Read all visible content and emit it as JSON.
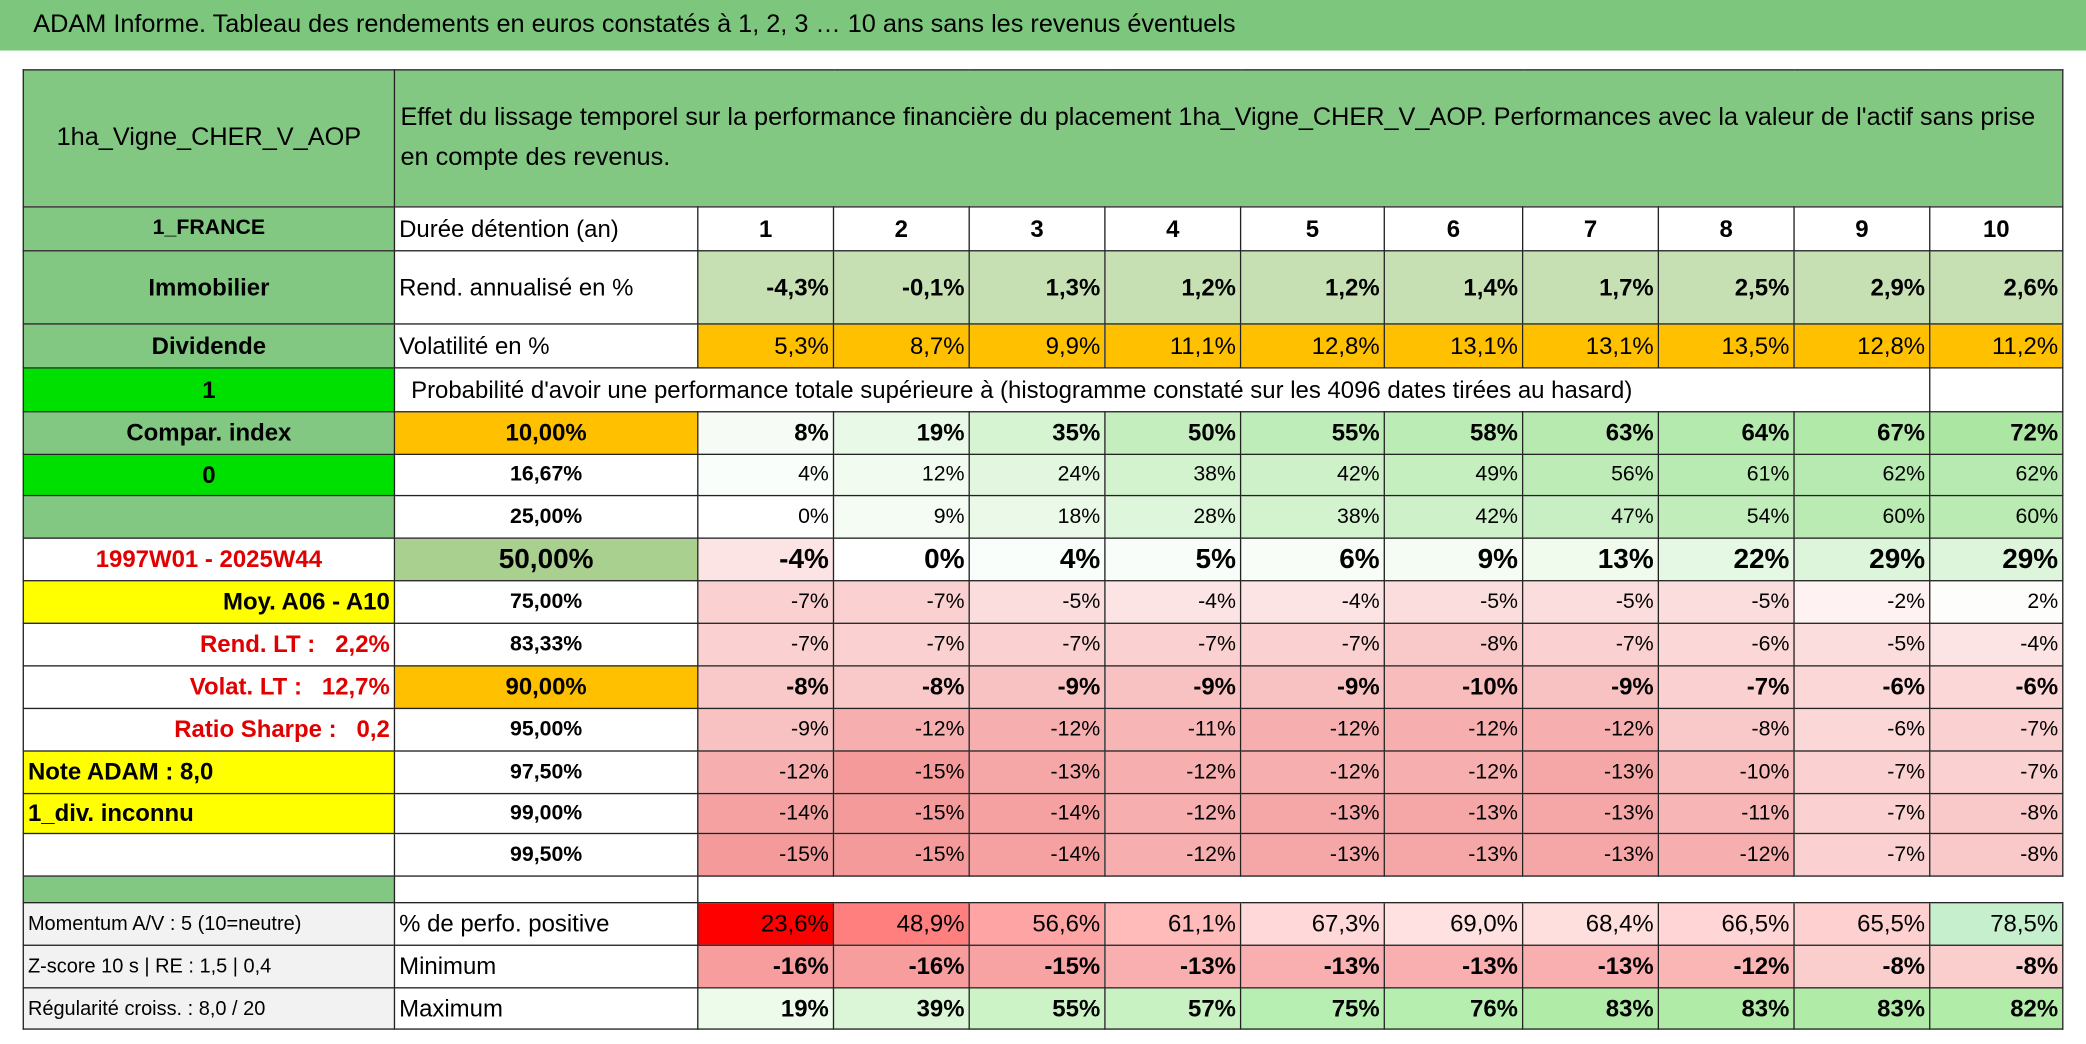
{
  "title": "ADAM Informe. Tableau des rendements en euros constatés à 1, 2, 3 … 10 ans sans les revenus éventuels",
  "table": {
    "corner": "1ha_Vigne_CHER_V_AOP",
    "description": "Effet du lissage temporel sur la performance financière du placement 1ha_Vigne_CHER_V_AOP. Performances avec la valeur de l'actif sans prise en compte des revenus.",
    "rows": [
      {
        "label": "1_FRANCE",
        "key": "Durée détention (an)",
        "cells": [
          "1",
          "2",
          "3",
          "4",
          "5",
          "6",
          "7",
          "8",
          "9",
          "10"
        ]
      },
      {
        "label": "Immobilier",
        "key": "Rend. annualisé en %",
        "cells": [
          "-4,3%",
          "-0,1%",
          "1,3%",
          "1,2%",
          "1,2%",
          "1,4%",
          "1,7%",
          "2,5%",
          "2,9%",
          "2,6%"
        ]
      },
      {
        "label": "Dividende",
        "key": "Volatilité en %",
        "cells": [
          "5,3%",
          "8,7%",
          "9,9%",
          "11,1%",
          "12,8%",
          "13,1%",
          "13,1%",
          "13,5%",
          "12,8%",
          "11,2%"
        ]
      },
      {
        "label": "1",
        "key": "Probabilité d'avoir une performance totale supérieure à (histogramme constaté sur les 4096 dates tirées au hasard)"
      },
      {
        "label": "Compar. index",
        "key": "10,00%",
        "cells": [
          "8%",
          "19%",
          "35%",
          "50%",
          "55%",
          "58%",
          "63%",
          "64%",
          "67%",
          "72%"
        ]
      },
      {
        "label": "0",
        "key": "16,67%",
        "cells": [
          "4%",
          "12%",
          "24%",
          "38%",
          "42%",
          "49%",
          "56%",
          "61%",
          "62%",
          "62%"
        ]
      },
      {
        "key": "25,00%",
        "cells": [
          "0%",
          "9%",
          "18%",
          "28%",
          "38%",
          "42%",
          "47%",
          "54%",
          "60%",
          "60%"
        ]
      },
      {
        "label": "1997W01 - 2025W44",
        "key": "50,00%",
        "cells": [
          "-4%",
          "0%",
          "4%",
          "5%",
          "6%",
          "9%",
          "13%",
          "22%",
          "29%",
          "29%"
        ]
      },
      {
        "label": "Moy. A06 - A10",
        "key": "75,00%",
        "cells": [
          "-7%",
          "-7%",
          "-5%",
          "-4%",
          "-4%",
          "-5%",
          "-5%",
          "-5%",
          "-2%",
          "2%"
        ]
      },
      {
        "label": "Rend. LT :   2,2%",
        "key": "83,33%",
        "cells": [
          "-7%",
          "-7%",
          "-7%",
          "-7%",
          "-7%",
          "-8%",
          "-7%",
          "-6%",
          "-5%",
          "-4%"
        ]
      },
      {
        "label": "Volat. LT :   12,7%",
        "key": "90,00%",
        "cells": [
          "-8%",
          "-8%",
          "-9%",
          "-9%",
          "-9%",
          "-10%",
          "-9%",
          "-7%",
          "-6%",
          "-6%"
        ]
      },
      {
        "label": "Ratio Sharpe :   0,2",
        "key": "95,00%",
        "cells": [
          "-9%",
          "-12%",
          "-12%",
          "-11%",
          "-12%",
          "-12%",
          "-12%",
          "-8%",
          "-6%",
          "-7%"
        ]
      },
      {
        "label": "Note ADAM : 8,0",
        "key": "97,50%",
        "cells": [
          "-12%",
          "-15%",
          "-13%",
          "-12%",
          "-12%",
          "-12%",
          "-13%",
          "-10%",
          "-7%",
          "-7%"
        ]
      },
      {
        "label": "1_div. inconnu",
        "key": "99,00%",
        "cells": [
          "-14%",
          "-15%",
          "-14%",
          "-12%",
          "-13%",
          "-13%",
          "-13%",
          "-11%",
          "-7%",
          "-8%"
        ]
      },
      {
        "key": "99,50%",
        "cells": [
          "-15%",
          "-15%",
          "-14%",
          "-12%",
          "-13%",
          "-13%",
          "-13%",
          "-12%",
          "-7%",
          "-8%"
        ]
      },
      {},
      {
        "label": "Momentum A/V : 5 (10=neutre)",
        "key": "% de perfo. positive",
        "cells": [
          "23,6%",
          "48,9%",
          "56,6%",
          "61,1%",
          "67,3%",
          "69,0%",
          "68,4%",
          "66,5%",
          "65,5%",
          "78,5%"
        ]
      },
      {
        "label": "Z-score 10 s | RE : 1,5 | 0,4",
        "key": "Minimum",
        "cells": [
          "-16%",
          "-16%",
          "-15%",
          "-13%",
          "-13%",
          "-13%",
          "-13%",
          "-12%",
          "-8%",
          "-8%"
        ]
      },
      {
        "label": "Régularité croiss. : 8,0 / 20",
        "key": "Maximum",
        "cells": [
          "19%",
          "39%",
          "55%",
          "57%",
          "75%",
          "76%",
          "83%",
          "83%",
          "83%",
          "82%"
        ]
      }
    ]
  }
}
